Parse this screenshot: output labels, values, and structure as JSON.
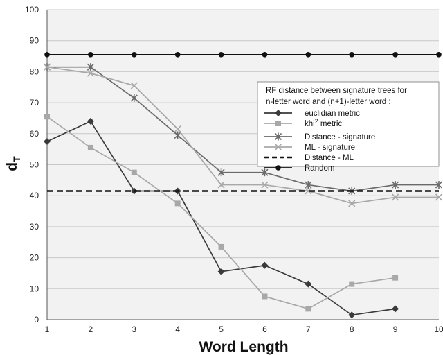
{
  "chart_data": {
    "type": "line",
    "title": "",
    "xlabel": "Word Length",
    "ylabel": "d",
    "ylabel_sub": "T",
    "x": [
      1,
      2,
      3,
      4,
      5,
      6,
      7,
      8,
      9,
      10
    ],
    "xlim": [
      1,
      10
    ],
    "ylim": [
      0,
      100
    ],
    "yticks": [
      0,
      10,
      20,
      30,
      40,
      50,
      60,
      70,
      80,
      90,
      100
    ],
    "grid": true,
    "legend_position": "top-right",
    "legend_title": [
      "RF distance between signature trees for",
      "n-letter word and (n+1)-letter word :"
    ],
    "series": [
      {
        "name": "euclidian metric",
        "name_sup": "",
        "name_tail": "",
        "marker": "diamond",
        "color": "#3a3a3a",
        "x": [
          1,
          2,
          3,
          4,
          5,
          6,
          7,
          8,
          9
        ],
        "values": [
          57.5,
          64,
          41.5,
          41.5,
          15.5,
          17.5,
          11.5,
          1.5,
          3.5
        ]
      },
      {
        "name": "khi",
        "name_sup": "2",
        "name_tail": " metric",
        "marker": "square",
        "color": "#a8a8a8",
        "x": [
          1,
          2,
          3,
          4,
          5,
          6,
          7,
          8,
          9
        ],
        "values": [
          65.5,
          55.5,
          47.5,
          37.5,
          23.5,
          7.5,
          3.5,
          11.5,
          13.5
        ]
      },
      {
        "name": "Distance - signature",
        "name_sup": "",
        "name_tail": "",
        "marker": "asterisk",
        "color": "#6a6a6a",
        "x": [
          1,
          2,
          3,
          4,
          5,
          6,
          7,
          8,
          9,
          10
        ],
        "values": [
          81.5,
          81.5,
          71.5,
          59.5,
          47.5,
          47.5,
          43.5,
          41.5,
          43.5,
          43.5
        ]
      },
      {
        "name": "ML - signature",
        "name_sup": "",
        "name_tail": "",
        "marker": "x",
        "color": "#a8a8a8",
        "x": [
          1,
          2,
          3,
          4,
          5,
          6,
          7,
          8,
          9,
          10
        ],
        "values": [
          81.5,
          79.5,
          75.5,
          61.5,
          43.5,
          43.5,
          41.5,
          37.5,
          39.5,
          39.5
        ]
      },
      {
        "name": "Distance - ML",
        "name_sup": "",
        "name_tail": "",
        "marker": "none",
        "dashed": true,
        "color": "#111111",
        "x": [
          1,
          10
        ],
        "values": [
          41.5,
          41.5
        ]
      },
      {
        "name": "Random",
        "name_sup": "",
        "name_tail": "",
        "marker": "circle",
        "color": "#111111",
        "x": [
          1,
          2,
          3,
          4,
          5,
          6,
          7,
          8,
          9,
          10
        ],
        "values": [
          85.5,
          85.5,
          85.5,
          85.5,
          85.5,
          85.5,
          85.5,
          85.5,
          85.5,
          85.5
        ]
      }
    ]
  }
}
